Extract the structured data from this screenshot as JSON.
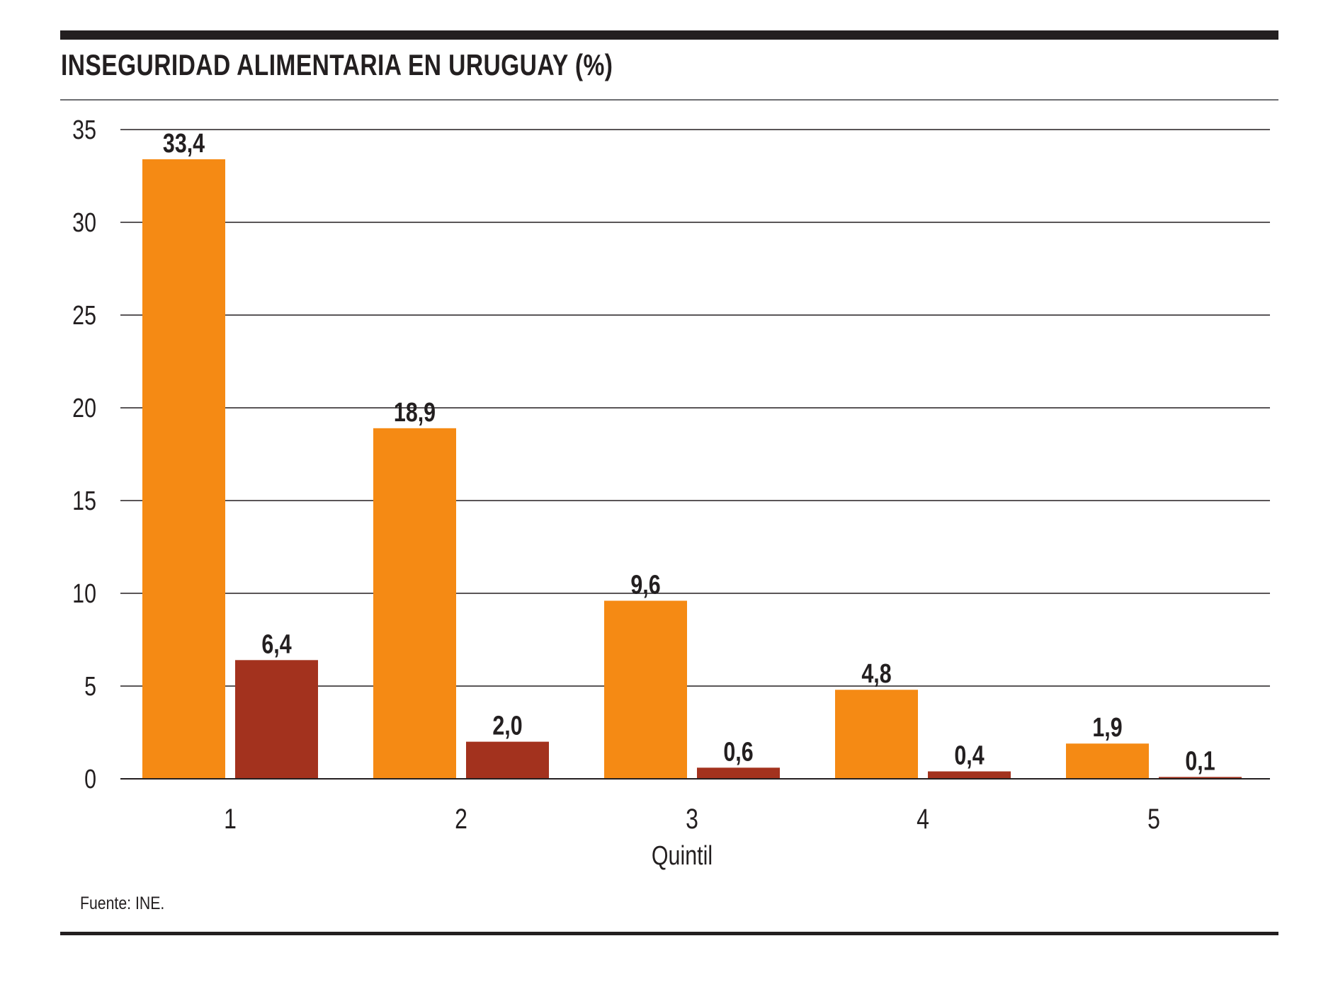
{
  "title": "INSEGURIDAD ALIMENTARIA EN URUGUAY (%)",
  "source": "Fuente: INE.",
  "chart_data": {
    "type": "bar",
    "title": "INSEGURIDAD ALIMENTARIA EN URUGUAY (%)",
    "xlabel": "Quintil",
    "ylabel": "",
    "categories": [
      "1",
      "2",
      "3",
      "4",
      "5"
    ],
    "ylim": [
      0,
      35
    ],
    "yticks": [
      0,
      5,
      10,
      15,
      20,
      25,
      30,
      35
    ],
    "grid": true,
    "series": [
      {
        "values": [
          33.4,
          18.9,
          9.6,
          4.8,
          1.9
        ],
        "labels": [
          "33,4",
          "18,9",
          "9,6",
          "4,8",
          "1,9"
        ],
        "color": "#f58a14"
      },
      {
        "values": [
          6.4,
          2.0,
          0.6,
          0.4,
          0.1
        ],
        "labels": [
          "6,4",
          "2,0",
          "0,6",
          "0,4",
          "0,1"
        ],
        "color": "#a3321e"
      }
    ]
  }
}
